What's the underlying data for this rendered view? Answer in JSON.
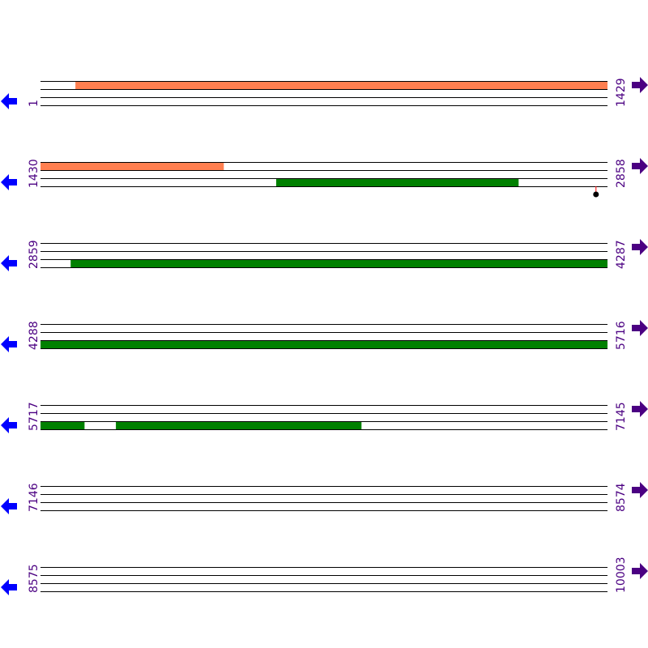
{
  "map": {
    "label_color": "#4b0082",
    "left_arrow_color": "#0000ff",
    "right_arrow_color": "#4b0082",
    "left_arrow_icon": "arrow-left-icon",
    "right_arrow_icon": "arrow-right-icon",
    "rows": [
      {
        "start": "1",
        "end": "1429"
      },
      {
        "start": "1430",
        "end": "2858"
      },
      {
        "start": "2859",
        "end": "4287"
      },
      {
        "start": "4288",
        "end": "5716"
      },
      {
        "start": "5717",
        "end": "7145"
      },
      {
        "start": "7146",
        "end": "8574"
      },
      {
        "start": "8575",
        "end": "10003"
      }
    ],
    "bp_per_row": 1429,
    "features": [
      {
        "start": 89,
        "end": 1891,
        "track": 0,
        "color": "#ff7f50"
      },
      {
        "start": 2024,
        "end": 2634,
        "track": 2,
        "color": "#008000"
      },
      {
        "start": 2935,
        "end": 5827,
        "track": 2,
        "color": "#008000"
      },
      {
        "start": 5907,
        "end": 6525,
        "track": 2,
        "color": "#008000"
      }
    ],
    "markers": [
      {
        "position": 2830,
        "stem_color": "#ff0000",
        "dot_color": "#000000"
      }
    ]
  }
}
